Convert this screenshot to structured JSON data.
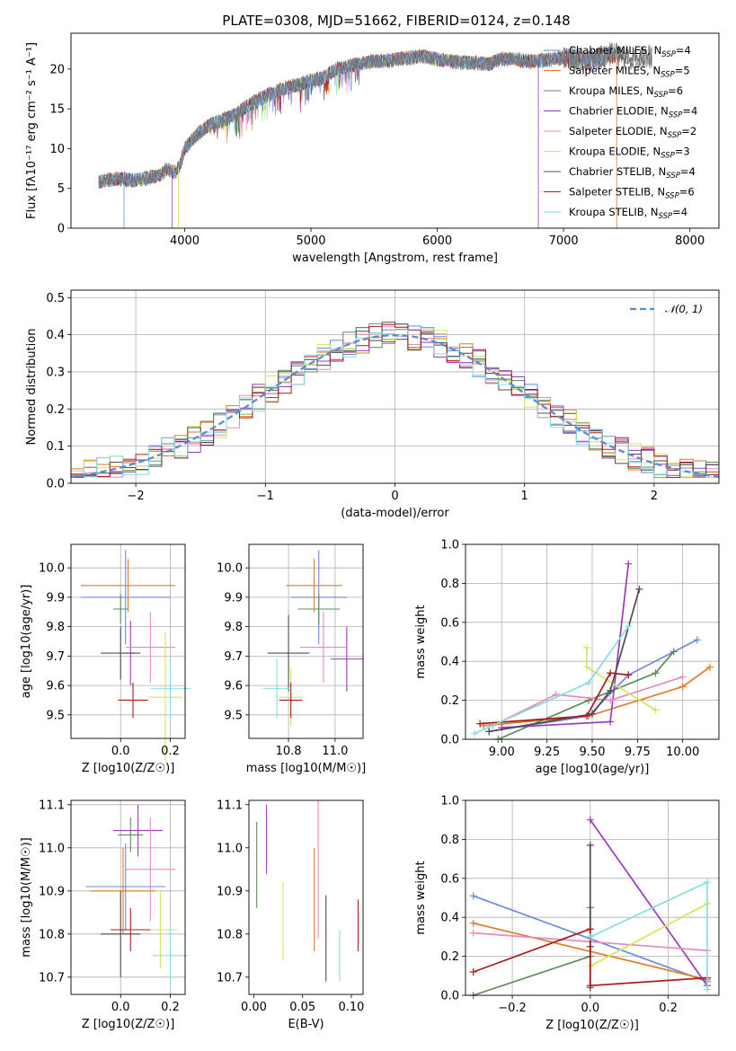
{
  "figure": {
    "title": "PLATE=0308, MJD=51662, FIBERID=0124, z=0.148"
  },
  "colors": {
    "series": [
      "#6a8bd8",
      "#e07b22",
      "#5e8a5a",
      "#9b3bbd",
      "#e58ac0",
      "#cfe85a",
      "#4d4d4d",
      "#a81c1c",
      "#86dde2"
    ],
    "grid": "#b0b0b0",
    "spectrum_dark": "#777777",
    "gaussian": "#5b8bd0"
  },
  "chart_data": [
    {
      "type": "line",
      "name": "spectrum",
      "xlabel": "wavelength [Angstrom, rest frame]",
      "ylabel": "Flux [fλ10⁻¹⁷ erg cm⁻² s⁻¹ A⁻¹]",
      "xlim": [
        3100,
        8230
      ],
      "ylim": [
        0,
        24.5
      ],
      "xticks": [
        4000,
        5000,
        6000,
        7000,
        8000
      ],
      "yticks": [
        0,
        5,
        10,
        15,
        20
      ],
      "grid": false,
      "legend_position": "top-right",
      "envelope": [
        [
          3320,
          5.8
        ],
        [
          3400,
          6.1
        ],
        [
          3500,
          6.2
        ],
        [
          3600,
          6.0
        ],
        [
          3700,
          6.3
        ],
        [
          3800,
          6.6
        ],
        [
          3860,
          7.4
        ],
        [
          3920,
          7.0
        ],
        [
          3960,
          7.8
        ],
        [
          4000,
          10.0
        ],
        [
          4100,
          11.8
        ],
        [
          4200,
          13.0
        ],
        [
          4300,
          13.6
        ],
        [
          4400,
          14.2
        ],
        [
          4500,
          15.4
        ],
        [
          4600,
          16.3
        ],
        [
          4700,
          17.0
        ],
        [
          4800,
          17.6
        ],
        [
          4900,
          18.0
        ],
        [
          5000,
          18.6
        ],
        [
          5100,
          18.9
        ],
        [
          5200,
          20.0
        ],
        [
          5300,
          20.3
        ],
        [
          5400,
          20.7
        ],
        [
          5500,
          21.0
        ],
        [
          5600,
          21.0
        ],
        [
          5700,
          21.3
        ],
        [
          5800,
          21.5
        ],
        [
          5900,
          21.6
        ],
        [
          6000,
          21.2
        ],
        [
          6100,
          21.0
        ],
        [
          6200,
          20.8
        ],
        [
          6300,
          20.8
        ],
        [
          6400,
          20.6
        ],
        [
          6500,
          21.2
        ],
        [
          6600,
          21.3
        ],
        [
          6700,
          21.0
        ],
        [
          6800,
          21.0
        ],
        [
          6900,
          21.2
        ],
        [
          7000,
          21.5
        ],
        [
          7100,
          21.2
        ],
        [
          7200,
          21.0
        ],
        [
          7300,
          21.5
        ],
        [
          7400,
          22.0
        ],
        [
          7500,
          21.4
        ],
        [
          7600,
          21.5
        ],
        [
          7700,
          21.6
        ]
      ],
      "series": [
        {
          "label": "Chabrier MILES, N",
          "sub": "SSP",
          "tail": "=4"
        },
        {
          "label": "Salpeter MILES, N",
          "sub": "SSP",
          "tail": "=5"
        },
        {
          "label": "Kroupa MILES, N",
          "sub": "SSP",
          "tail": "=6"
        },
        {
          "label": "Chabrier ELODIE, N",
          "sub": "SSP",
          "tail": "=4"
        },
        {
          "label": "Salpeter ELODIE, N",
          "sub": "SSP",
          "tail": "=2"
        },
        {
          "label": "Kroupa ELODIE, N",
          "sub": "SSP",
          "tail": "=3"
        },
        {
          "label": "Chabrier STELIB, N",
          "sub": "SSP",
          "tail": "=4"
        },
        {
          "label": "Salpeter STELIB, N",
          "sub": "SSP",
          "tail": "=6"
        },
        {
          "label": "Kroupa STELIB, N",
          "sub": "SSP",
          "tail": "=4"
        }
      ]
    },
    {
      "type": "line",
      "name": "residual-histogram",
      "xlabel": "(data-model)/error",
      "ylabel": "Normed distribution",
      "xlim": [
        -2.5,
        2.5
      ],
      "ylim": [
        0,
        0.52
      ],
      "xticks": [
        -2,
        -1,
        0,
        1,
        2
      ],
      "yticks": [
        0.0,
        0.1,
        0.2,
        0.3,
        0.4,
        0.5
      ],
      "grid": true,
      "legend": "𝒩(0, 1)",
      "legend_position": "top-right",
      "histogram": {
        "bin_width": 0.1,
        "curve": "normal(0,1)"
      }
    },
    {
      "type": "scatter",
      "name": "age-vs-Z",
      "xlabel": "Z [log10(Z/Z☉)]",
      "ylabel": "age  [log10(age/yr)]",
      "xlim": [
        -0.2,
        0.26
      ],
      "ylim": [
        9.42,
        10.08
      ],
      "xticks": [
        0.0,
        0.2
      ],
      "yticks": [
        9.5,
        9.6,
        9.7,
        9.8,
        9.9,
        10.0
      ],
      "grid": true,
      "points": [
        {
          "x": 0.02,
          "y": 9.9,
          "xe": 0.18,
          "ye": 0.16
        },
        {
          "x": 0.03,
          "y": 9.94,
          "xe": 0.19,
          "ye": 0.09
        },
        {
          "x": 0.0,
          "y": 9.86,
          "xe": 0.03,
          "ye": 0.05
        },
        {
          "x": 0.04,
          "y": 9.71,
          "xe": 0.02,
          "ye": 0.11
        },
        {
          "x": 0.12,
          "y": 9.73,
          "xe": 0.1,
          "ye": 0.12
        },
        {
          "x": 0.18,
          "y": 9.56,
          "xe": 0.07,
          "ye": 0.22
        },
        {
          "x": 0.0,
          "y": 9.71,
          "xe": 0.08,
          "ye": 0.09
        },
        {
          "x": 0.05,
          "y": 9.55,
          "xe": 0.06,
          "ye": 0.06
        },
        {
          "x": 0.2,
          "y": 9.59,
          "xe": 0.08,
          "ye": 0.1
        }
      ]
    },
    {
      "type": "scatter",
      "name": "age-vs-mass",
      "xlabel": "mass [log10(M/M☉)]",
      "ylabel": "",
      "xlim": [
        10.63,
        11.12
      ],
      "ylim": [
        9.42,
        10.08
      ],
      "xticks": [
        10.8,
        11.0
      ],
      "yticks": [
        9.5,
        9.6,
        9.7,
        9.8,
        9.9,
        10.0
      ],
      "grid": true,
      "points": [
        {
          "x": 10.93,
          "y": 9.9,
          "xe": 0.12,
          "ye": 0.16
        },
        {
          "x": 10.91,
          "y": 9.94,
          "xe": 0.12,
          "ye": 0.09
        },
        {
          "x": 10.93,
          "y": 9.86,
          "xe": 0.09,
          "ye": 0.05
        },
        {
          "x": 11.05,
          "y": 9.69,
          "xe": 0.07,
          "ye": 0.11
        },
        {
          "x": 10.95,
          "y": 9.73,
          "xe": 0.1,
          "ye": 0.12
        },
        {
          "x": 10.81,
          "y": 9.56,
          "xe": 0.05,
          "ye": 0.1
        },
        {
          "x": 10.8,
          "y": 9.71,
          "xe": 0.09,
          "ye": 0.13
        },
        {
          "x": 10.81,
          "y": 9.55,
          "xe": 0.05,
          "ye": 0.06
        },
        {
          "x": 10.75,
          "y": 9.59,
          "xe": 0.06,
          "ye": 0.1
        }
      ]
    },
    {
      "type": "line",
      "name": "massweight-vs-age",
      "xlabel": "age  [log10(age/yr)]",
      "ylabel": "mass weight",
      "xlim": [
        8.8,
        10.2
      ],
      "ylim": [
        0,
        1.0
      ],
      "xticks": [
        9.0,
        9.25,
        9.5,
        9.75,
        10.0
      ],
      "yticks": [
        0.0,
        0.2,
        0.4,
        0.6,
        0.8,
        1.0
      ],
      "grid": true,
      "series": [
        {
          "x": [
            8.93,
            9.48,
            9.7,
            10.08
          ],
          "y": [
            0.04,
            0.12,
            0.33,
            0.51
          ]
        },
        {
          "x": [
            8.9,
            9.48,
            10.0,
            10.15
          ],
          "y": [
            0.07,
            0.12,
            0.27,
            0.37
          ]
        },
        {
          "x": [
            8.98,
            9.48,
            9.85,
            9.95
          ],
          "y": [
            0.0,
            0.2,
            0.34,
            0.45
          ]
        },
        {
          "x": [
            9.0,
            9.6,
            9.7
          ],
          "y": [
            0.06,
            0.09,
            0.9
          ]
        },
        {
          "x": [
            8.95,
            9.3,
            9.6,
            10.0
          ],
          "y": [
            0.07,
            0.23,
            0.2,
            0.32
          ]
        },
        {
          "x": [
            9.47,
            9.47,
            9.85
          ],
          "y": [
            0.47,
            0.37,
            0.15
          ]
        },
        {
          "x": [
            8.93,
            9.5,
            9.6,
            9.76
          ],
          "y": [
            0.04,
            0.13,
            0.25,
            0.77
          ]
        },
        {
          "x": [
            8.88,
            9.47,
            9.6,
            9.7
          ],
          "y": [
            0.08,
            0.12,
            0.34,
            0.33
          ]
        },
        {
          "x": [
            8.85,
            9.48,
            9.7
          ],
          "y": [
            0.03,
            0.29,
            0.58
          ]
        }
      ]
    },
    {
      "type": "scatter",
      "name": "mass-vs-Z",
      "xlabel": "Z [log10(Z/Z☉)]",
      "ylabel": "mass [log10(M/M☉)]",
      "xlim": [
        -0.2,
        0.26
      ],
      "ylim": [
        10.66,
        11.11
      ],
      "xticks": [
        0.0,
        0.2
      ],
      "yticks": [
        10.7,
        10.8,
        10.9,
        11.0,
        11.1
      ],
      "grid": true,
      "points": [
        {
          "x": 0.02,
          "y": 10.91,
          "xe": 0.16,
          "ye": 0.1
        },
        {
          "x": 0.01,
          "y": 10.9,
          "xe": 0.13,
          "ye": 0.1
        },
        {
          "x": 0.04,
          "y": 11.03,
          "xe": 0.05,
          "ye": 0.04
        },
        {
          "x": 0.07,
          "y": 11.04,
          "xe": 0.1,
          "ye": 0.06
        },
        {
          "x": 0.12,
          "y": 10.95,
          "xe": 0.1,
          "ye": 0.12
        },
        {
          "x": 0.16,
          "y": 10.81,
          "xe": 0.07,
          "ye": 0.09
        },
        {
          "x": 0.0,
          "y": 10.8,
          "xe": 0.08,
          "ye": 0.1
        },
        {
          "x": 0.04,
          "y": 10.81,
          "xe": 0.08,
          "ye": 0.05
        },
        {
          "x": 0.2,
          "y": 10.75,
          "xe": 0.07,
          "ye": 0.07
        }
      ]
    },
    {
      "type": "scatter",
      "name": "mass-vs-EBV",
      "xlabel": "E(B-V)",
      "ylabel": "",
      "xlim": [
        -0.005,
        0.112
      ],
      "ylim": [
        10.66,
        11.11
      ],
      "xticks": [
        0.0,
        0.05,
        0.1
      ],
      "yticks": [
        10.7,
        10.8,
        10.9,
        11.0,
        11.1
      ],
      "grid": false,
      "points": [
        {
          "x": 0.003,
          "y": 10.96,
          "ye": 0.1
        },
        {
          "x": 0.013,
          "y": 11.02,
          "ye": 0.08
        },
        {
          "x": 0.03,
          "y": 10.83,
          "ye": 0.09
        },
        {
          "x": 0.062,
          "y": 10.88,
          "ye": 0.12
        },
        {
          "x": 0.066,
          "y": 10.95,
          "ye": 0.16
        },
        {
          "x": 0.074,
          "y": 10.79,
          "ye": 0.1
        },
        {
          "x": 0.088,
          "y": 10.75,
          "ye": 0.06
        },
        {
          "x": 0.107,
          "y": 10.82,
          "ye": 0.06
        }
      ]
    },
    {
      "type": "line",
      "name": "massweight-vs-Z",
      "xlabel": "Z [log10(Z/Z☉)]",
      "ylabel": "mass weight",
      "xlim": [
        -0.32,
        0.33
      ],
      "ylim": [
        0,
        1.0
      ],
      "xticks": [
        -0.2,
        0.0,
        0.2
      ],
      "yticks": [
        0.0,
        0.2,
        0.4,
        0.6,
        0.8,
        1.0
      ],
      "grid": true,
      "series": [
        {
          "x": [
            -0.3,
            0.3
          ],
          "y": [
            0.51,
            0.07
          ]
        },
        {
          "x": [
            -0.3,
            0.3
          ],
          "y": [
            0.37,
            0.08
          ]
        },
        {
          "x": [
            -0.3,
            0.0,
            0.0
          ],
          "y": [
            0.0,
            0.2,
            0.45
          ]
        },
        {
          "x": [
            0.0,
            0.3
          ],
          "y": [
            0.9,
            0.05
          ]
        },
        {
          "x": [
            -0.3,
            0.3
          ],
          "y": [
            0.32,
            0.23
          ]
        },
        {
          "x": [
            0.0,
            0.3
          ],
          "y": [
            0.15,
            0.47
          ]
        },
        {
          "x": [
            0.0,
            0.0,
            0.0
          ],
          "y": [
            0.04,
            0.25,
            0.77
          ]
        },
        {
          "x": [
            -0.3,
            0.0,
            0.0,
            0.3
          ],
          "y": [
            0.12,
            0.34,
            0.05,
            0.09
          ]
        },
        {
          "x": [
            0.0,
            0.3,
            0.3
          ],
          "y": [
            0.3,
            0.58,
            0.03
          ]
        }
      ]
    }
  ]
}
